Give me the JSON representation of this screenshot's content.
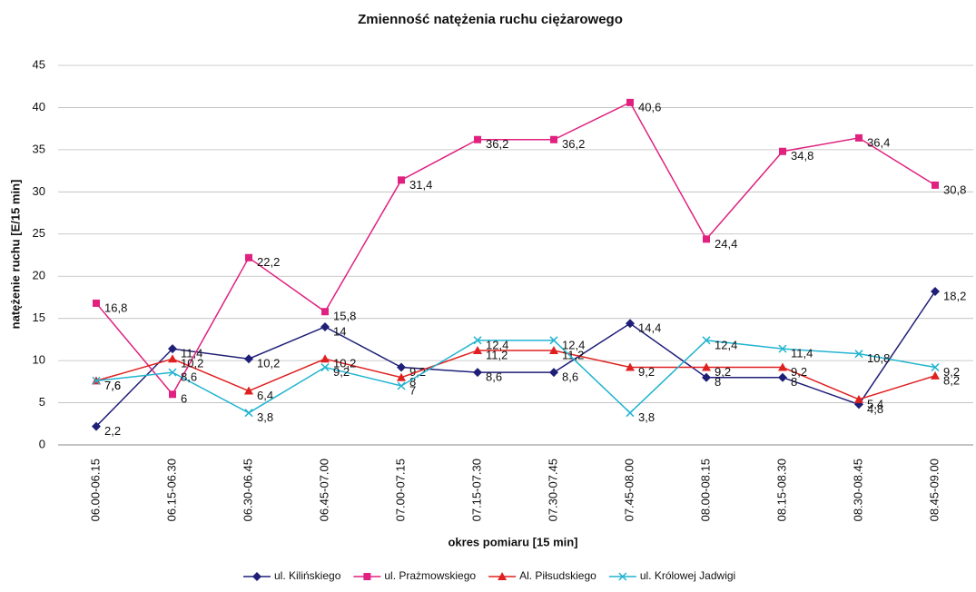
{
  "chart_data": {
    "type": "line",
    "title": "Zmienność natężenia ruchu ciężarowego",
    "x_label": "okres pomiaru [15 min]",
    "y_label": "natężenie ruchu [E/15 min]",
    "categories": [
      "06.00-06.15",
      "06.15-06.30",
      "06.30-06.45",
      "06.45-07.00",
      "07.00-07.15",
      "07.15-07.30",
      "07.30-07.45",
      "07.45-08.00",
      "08.00-08.15",
      "08.15-08.30",
      "08.30-08.45",
      "08.45-09.00"
    ],
    "ylim": [
      0,
      45
    ],
    "yticks": [
      0,
      5,
      10,
      15,
      20,
      25,
      30,
      35,
      40,
      45
    ],
    "grid": true,
    "legend": "bottom",
    "series": [
      {
        "name": "ul. Kilińskiego",
        "color": "#1f1f78",
        "marker": "diamond",
        "values": [
          2.2,
          11.4,
          10.2,
          14,
          9.2,
          8.6,
          8.6,
          14.4,
          8,
          8,
          4.8,
          18.2
        ],
        "value_labels": [
          "2,2",
          "11,4",
          "10,2",
          "14",
          "9,2",
          "8,6",
          "8,6",
          "14,4",
          "8",
          "8",
          "4,8",
          "18,2"
        ]
      },
      {
        "name": "ul. Prażmowskiego",
        "color": "#e0217f",
        "marker": "square",
        "values": [
          16.8,
          6,
          22.2,
          15.8,
          31.4,
          36.2,
          36.2,
          40.6,
          24.4,
          34.8,
          36.4,
          30.8
        ],
        "value_labels": [
          "16,8",
          "6",
          "22,2",
          "15,8",
          "31,4",
          "36,2",
          "36,2",
          "40,6",
          "24,4",
          "34,8",
          "36,4",
          "30,8"
        ]
      },
      {
        "name": "Al. Piłsudskiego",
        "color": "#e02020",
        "marker": "triangle",
        "values": [
          7.6,
          10.2,
          6.4,
          10.2,
          8,
          11.2,
          11.2,
          9.2,
          9.2,
          9.2,
          5.4,
          8.2
        ],
        "value_labels": [
          "7,6",
          "10,2",
          "6,4",
          "10,2",
          "8",
          "11,2",
          "11,2",
          "9,2",
          "9,2",
          "9,2",
          "5,4",
          "8,2"
        ]
      },
      {
        "name": "ul. Królowej Jadwigi",
        "color": "#22b4d0",
        "marker": "x",
        "values": [
          7.6,
          8.6,
          3.8,
          9.2,
          7,
          12.4,
          12.4,
          3.8,
          12.4,
          11.4,
          10.8,
          9.2
        ],
        "value_labels": [
          "7,6",
          "8,6",
          "3,8",
          "9,2",
          "7",
          "12,4",
          "12,4",
          "3,8",
          "12,4",
          "11,4",
          "10,8",
          "9,2"
        ]
      }
    ]
  }
}
